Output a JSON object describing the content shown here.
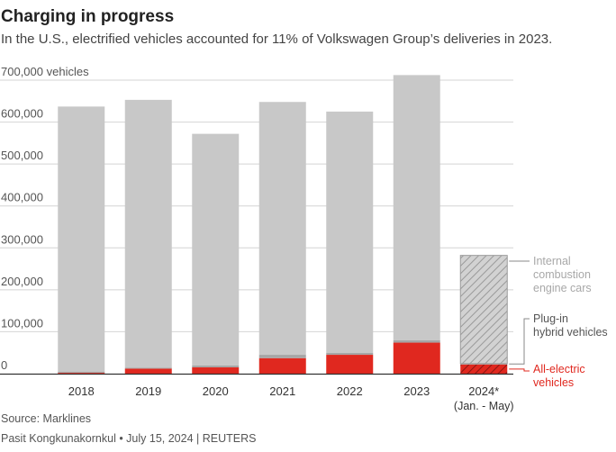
{
  "header": {
    "title": "Charging in progress",
    "subtitle": "In the U.S., electrified vehicles accounted for 11% of Volkswagen Group’s deliveries in 2023."
  },
  "footer": {
    "source": "Source: Marklines",
    "credit": "Pasit Kongkunakornkul • July 15, 2024 | REUTERS"
  },
  "colors": {
    "ice": "#c8c8c8",
    "phev": "#a6a6a6",
    "bev": "#e0281f",
    "grid": "#d4d4d4",
    "axis": "#333333"
  },
  "chart_data": {
    "type": "bar",
    "stacked": true,
    "title": "Charging in progress",
    "ylabel": "vehicles",
    "ylim": [
      0,
      700000
    ],
    "yticks": [
      0,
      100000,
      200000,
      300000,
      400000,
      500000,
      600000,
      700000
    ],
    "ytick_labels": [
      "0",
      "100,000",
      "200,000",
      "300,000",
      "400,000",
      "500,000",
      "600,000",
      "700,000 vehicles"
    ],
    "categories": [
      "2018",
      "2019",
      "2020",
      "2021",
      "2022",
      "2023",
      "2024*"
    ],
    "category_notes": [
      "",
      "",
      "",
      "",
      "",
      "",
      "(Jan. - May)"
    ],
    "hatched_categories": [
      "2024*"
    ],
    "series": [
      {
        "name": "All-electric vehicles",
        "legend_lines": [
          "All-electric",
          "vehicles"
        ],
        "color": "#e0281f",
        "values": [
          2000,
          12000,
          15000,
          37000,
          45000,
          74000,
          22000
        ]
      },
      {
        "name": "Plug-in hybrid vehicles",
        "legend_lines": [
          "Plug-in",
          "hybrid vehicles"
        ],
        "color": "#a6a6a6",
        "values": [
          3000,
          2000,
          5000,
          8000,
          5000,
          6000,
          2000
        ]
      },
      {
        "name": "Internal combustion engine cars",
        "legend_lines": [
          "Internal",
          "combustion",
          "engine cars"
        ],
        "color": "#c8c8c8",
        "values": [
          632000,
          639000,
          552000,
          603000,
          575000,
          632000,
          258000
        ]
      }
    ]
  }
}
